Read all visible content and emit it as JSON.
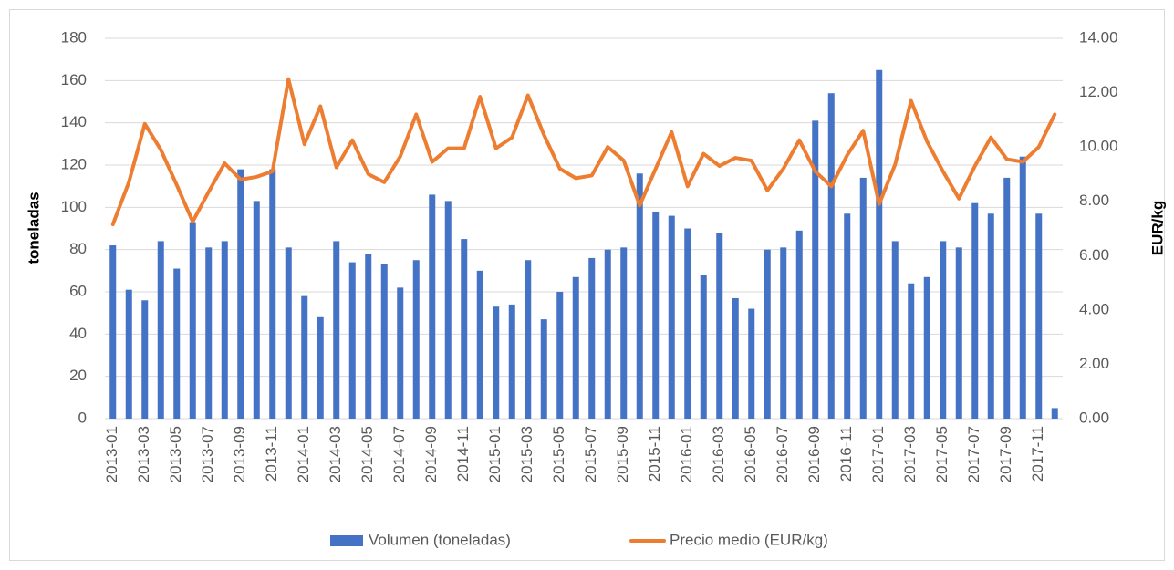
{
  "chart_data": {
    "type": "bar_line",
    "y_label": "toneladas",
    "y2_label": "EUR/kg",
    "categories": [
      "2013-01",
      null,
      "2013-03",
      null,
      "2013-05",
      null,
      "2013-07",
      null,
      "2013-09",
      null,
      "2013-11",
      null,
      "2014-01",
      null,
      "2014-03",
      null,
      "2014-05",
      null,
      "2014-07",
      null,
      "2014-09",
      null,
      "2014-11",
      null,
      "2015-01",
      null,
      "2015-03",
      null,
      "2015-05",
      null,
      "2015-07",
      null,
      "2015-09",
      null,
      "2015-11",
      null,
      "2016-01",
      null,
      "2016-03",
      null,
      "2016-05",
      null,
      "2016-07",
      null,
      "2016-09",
      null,
      "2016-11",
      null,
      "2017-01",
      null,
      "2017-03",
      null,
      "2017-05",
      null,
      "2017-07",
      null,
      "2017-09",
      null,
      "2017-11",
      null
    ],
    "series": [
      {
        "name": "Volumen (toneladas)",
        "type": "bar",
        "color": "#4472c4",
        "axis": "y",
        "values": [
          82,
          61,
          56,
          84,
          71,
          93,
          81,
          84,
          118,
          103,
          118,
          81,
          58,
          48,
          84,
          74,
          78,
          73,
          62,
          75,
          106,
          103,
          85,
          70,
          53,
          54,
          75,
          47,
          60,
          67,
          76,
          80,
          81,
          116,
          98,
          96,
          90,
          68,
          88,
          57,
          52,
          80,
          81,
          89,
          141,
          154,
          97,
          114,
          165,
          84,
          64,
          67,
          84,
          81,
          102,
          97,
          114,
          124,
          97,
          5
        ]
      },
      {
        "name": "Precio medio (EUR/kg)",
        "type": "line",
        "color": "#ed7d31",
        "axis": "y2",
        "values": [
          7.15,
          8.7,
          10.85,
          9.9,
          8.6,
          7.25,
          8.35,
          9.4,
          8.8,
          8.9,
          9.1,
          12.5,
          10.1,
          11.5,
          9.25,
          10.25,
          9.0,
          8.7,
          9.65,
          11.2,
          9.45,
          9.95,
          9.95,
          11.85,
          9.95,
          10.35,
          11.9,
          10.45,
          9.2,
          8.85,
          8.95,
          10.0,
          9.5,
          7.85,
          9.2,
          10.55,
          8.55,
          9.75,
          9.3,
          9.6,
          9.5,
          8.4,
          9.2,
          10.25,
          9.1,
          8.55,
          9.7,
          10.6,
          7.9,
          9.35,
          11.7,
          10.2,
          9.1,
          8.1,
          9.3,
          10.35,
          9.55,
          9.45,
          10.0,
          11.2
        ]
      }
    ],
    "ylim": [
      0,
      180
    ],
    "yticks": [
      0,
      20,
      40,
      60,
      80,
      100,
      120,
      140,
      160,
      180
    ],
    "y2lim": [
      0,
      14
    ],
    "y2ticks": [
      {
        "value": 0,
        "label": "0.00"
      },
      {
        "value": 2,
        "label": "2.00"
      },
      {
        "value": 4,
        "label": "4.00"
      },
      {
        "value": 6,
        "label": "6.00"
      },
      {
        "value": 8,
        "label": "8.00"
      },
      {
        "value": 10,
        "label": "10.00"
      },
      {
        "value": 12,
        "label": "12.00"
      },
      {
        "value": 14,
        "label": "14.00"
      }
    ],
    "grid": true,
    "legend": "bottom"
  }
}
